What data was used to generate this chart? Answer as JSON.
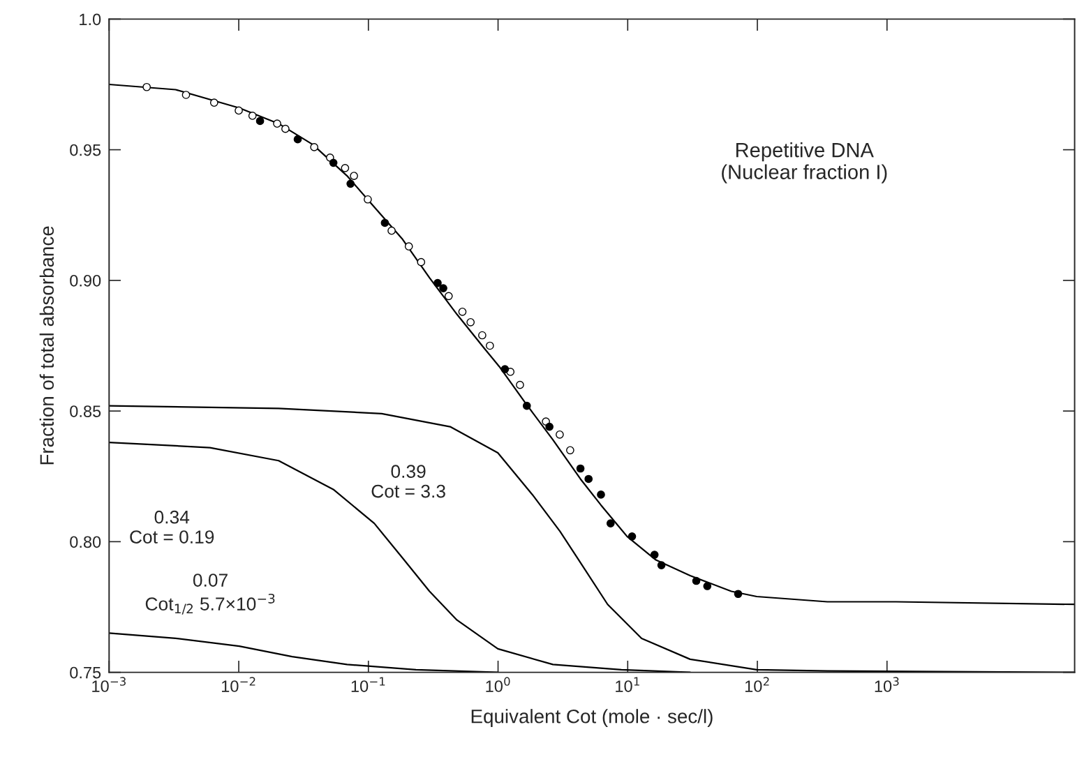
{
  "chart_data": {
    "type": "scatter",
    "xlabel": "Equivalent Cot (mole · sec/l)",
    "ylabel": "Fraction of total absorbance",
    "log": "x",
    "xlim": [
      0.001,
      28000
    ],
    "ylim": [
      0.75,
      1.0
    ],
    "xticks": [
      {
        "value": 0.001,
        "label": "10$^{−3}$"
      },
      {
        "value": 0.01,
        "label": "10$^{−2}$"
      },
      {
        "value": 0.1,
        "label": "10$^{−1}$"
      },
      {
        "value": 1,
        "label": "10$^{0}$"
      },
      {
        "value": 10,
        "label": "10$^{1}$"
      },
      {
        "value": 100,
        "label": "10$^{2}$"
      },
      {
        "value": 1000,
        "label": "10$^{3}$"
      }
    ],
    "yticks": [
      0.75,
      {
        "value": 0.8,
        "label": "0.80"
      },
      0.85,
      {
        "value": 0.9,
        "label": "0.90"
      },
      0.95,
      {
        "value": 1.0,
        "label": "1.0"
      }
    ],
    "grid": false,
    "legend": false,
    "series": [
      {
        "type": "line",
        "color": "#000000",
        "marker": "none",
        "x": [
          0.001,
          0.00326,
          0.0101,
          0.0203,
          0.0372,
          0.0685,
          0.1026,
          0.1816,
          0.296,
          0.482,
          0.783,
          1.023,
          1.63,
          2.65,
          4.32,
          6.22,
          9.89,
          16.5,
          30.3,
          63.0,
          98.9,
          347,
          1172,
          28000
        ],
        "values": [
          0.975,
          0.973,
          0.966,
          0.96,
          0.952,
          0.94,
          0.93,
          0.916,
          0.901,
          0.887,
          0.874,
          0.867,
          0.853,
          0.839,
          0.824,
          0.814,
          0.802,
          0.793,
          0.787,
          0.781,
          0.779,
          0.777,
          0.777,
          0.776
        ]
      },
      {
        "type": "line",
        "color": "#000000",
        "marker": "none",
        "x": [
          0.001,
          0.0203,
          0.1268,
          0.427,
          0.996,
          1.84,
          3.0,
          4.32,
          7.0,
          12.8,
          30.3,
          98.9,
          347,
          28000
        ],
        "values": [
          0.852,
          0.851,
          0.849,
          0.844,
          0.834,
          0.818,
          0.804,
          0.792,
          0.776,
          0.763,
          0.755,
          0.751,
          0.7505,
          0.75
        ]
      },
      {
        "type": "line",
        "color": "#000000",
        "marker": "none",
        "x": [
          0.001,
          0.006,
          0.0203,
          0.0536,
          0.111,
          0.1816,
          0.296,
          0.482,
          0.996,
          2.65,
          8.94,
          30.3
        ],
        "values": [
          0.838,
          0.836,
          0.831,
          0.82,
          0.807,
          0.794,
          0.781,
          0.77,
          0.759,
          0.753,
          0.751,
          0.75
        ]
      },
      {
        "type": "line",
        "color": "#000000",
        "marker": "none",
        "x": [
          0.001,
          0.00326,
          0.0101,
          0.0258,
          0.0685,
          0.2326,
          1.0
        ],
        "values": [
          0.765,
          0.763,
          0.76,
          0.756,
          0.753,
          0.751,
          0.75
        ]
      },
      {
        "color": "#ffffff",
        "marker": "circle",
        "x": [
          0.00195,
          0.00392,
          0.00646,
          0.01,
          0.01276,
          0.01977,
          0.0229,
          0.0269,
          0.0382,
          0.0506,
          0.0661,
          0.0774,
          0.0989,
          0.131,
          0.151,
          0.205,
          0.255,
          0.355,
          0.416,
          0.531,
          0.614,
          0.755,
          0.865,
          1.245,
          1.476,
          2.34,
          2.99,
          3.6
        ],
        "values": [
          0.974,
          0.971,
          0.968,
          0.965,
          0.963,
          0.96,
          0.958,
          null,
          0.951,
          0.947,
          0.943,
          0.94,
          0.931,
          null,
          0.919,
          0.913,
          0.907,
          null,
          0.894,
          0.888,
          0.884,
          0.879,
          0.875,
          0.865,
          0.86,
          0.846,
          0.841,
          0.835
        ]
      },
      {
        "color": "#000000",
        "marker": "circle",
        "x": [
          0.0146,
          0.0285,
          0.0537,
          0.0728,
          0.134,
          0.342,
          0.378,
          1.13,
          1.667,
          2.49,
          4.32,
          4.99,
          6.22,
          7.38,
          10.8,
          16.1,
          18.2,
          33.8,
          41.1,
          71.1
        ],
        "values": [
          0.961,
          0.954,
          0.945,
          0.937,
          0.922,
          0.899,
          0.897,
          0.866,
          0.852,
          0.844,
          0.828,
          0.824,
          0.818,
          0.807,
          0.802,
          0.795,
          0.791,
          0.785,
          0.783,
          0.78
        ]
      }
    ],
    "annotations": [
      "Repetitive DNA\n(Nuclear fraction I)",
      "0.39\nCot = 3.3",
      "0.34\nCot = 0.19",
      "0.07\nCot$_{1/2}$ 5.7×10$^{−3}$"
    ]
  }
}
